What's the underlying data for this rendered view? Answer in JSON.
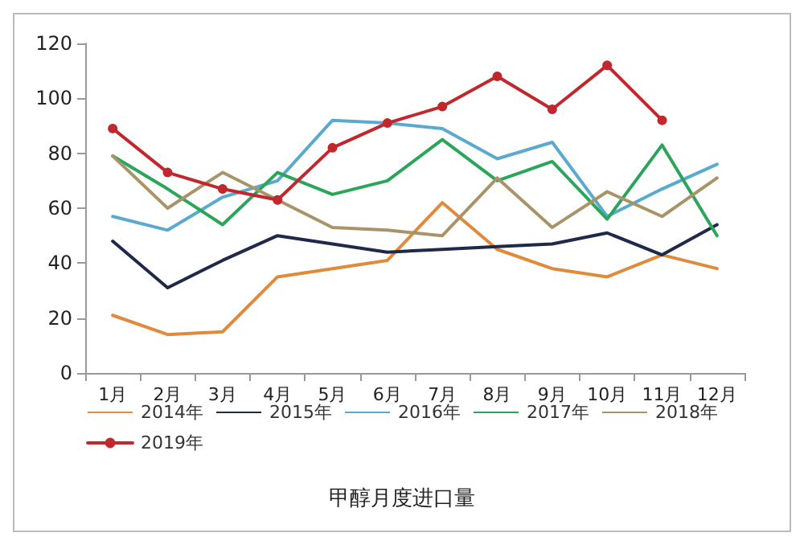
{
  "chart_data": {
    "type": "line",
    "title": "甲醇月度进口量",
    "categories": [
      "1月",
      "2月",
      "3月",
      "4月",
      "5月",
      "6月",
      "7月",
      "8月",
      "9月",
      "10月",
      "11月",
      "12月"
    ],
    "series": [
      {
        "name": "2014年",
        "color": "#e08a3c",
        "values": [
          21,
          14,
          15,
          35,
          38,
          41,
          62,
          45,
          38,
          35,
          43,
          38
        ]
      },
      {
        "name": "2015年",
        "color": "#1f2a4a",
        "values": [
          48,
          31,
          41,
          50,
          47,
          44,
          45,
          46,
          47,
          51,
          43,
          54
        ]
      },
      {
        "name": "2016年",
        "color": "#5aaad0",
        "values": [
          57,
          52,
          64,
          70,
          92,
          91,
          89,
          78,
          84,
          57,
          67,
          76
        ]
      },
      {
        "name": "2017年",
        "color": "#2aa55a",
        "values": [
          79,
          67,
          54,
          73,
          65,
          70,
          85,
          70,
          77,
          56,
          83,
          50
        ]
      },
      {
        "name": "2018年",
        "color": "#a89468",
        "values": [
          79,
          60,
          73,
          63,
          53,
          52,
          50,
          71,
          53,
          66,
          57,
          71
        ]
      },
      {
        "name": "2019年",
        "color": "#c0282d",
        "marker": "circle",
        "values": [
          89,
          73,
          67,
          63,
          82,
          91,
          97,
          108,
          96,
          112,
          92,
          null
        ]
      }
    ],
    "ylim": [
      0,
      120
    ],
    "yticks": [
      0,
      20,
      40,
      60,
      80,
      100,
      120
    ],
    "grid": false,
    "legend": "bottom",
    "marker": "none"
  }
}
